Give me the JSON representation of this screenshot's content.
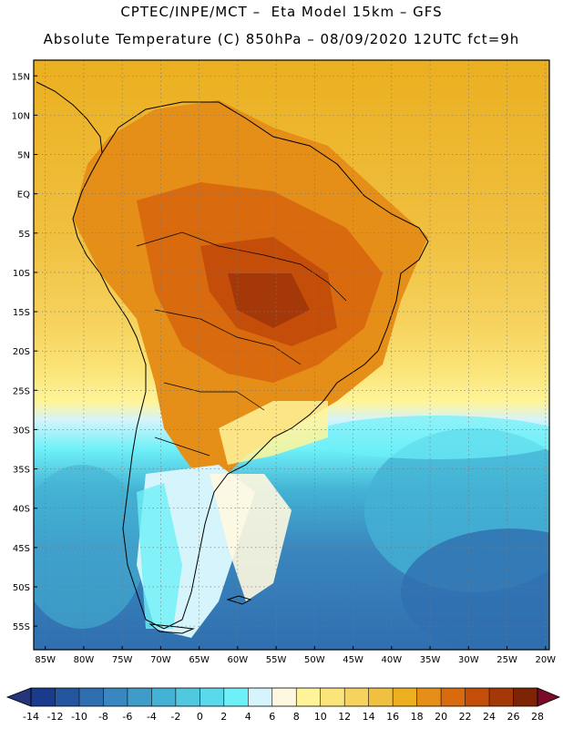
{
  "header": {
    "line1": "CPTEC/INPE/MCT –  Eta Model 15km – GFS",
    "line2": "Absolute Temperature (C) 850hPa – 08/09/2020 12UTC fct=9h"
  },
  "map": {
    "region": "South America",
    "lat_labels": [
      "15N",
      "10N",
      "5N",
      "EQ",
      "5S",
      "10S",
      "15S",
      "20S",
      "25S",
      "30S",
      "35S",
      "40S",
      "45S",
      "50S",
      "55S"
    ],
    "lat_values": [
      15,
      10,
      5,
      0,
      -5,
      -10,
      -15,
      -20,
      -25,
      -30,
      -35,
      -40,
      -45,
      -50,
      -55
    ],
    "lon_labels": [
      "85W",
      "80W",
      "75W",
      "70W",
      "65W",
      "60W",
      "55W",
      "50W",
      "45W",
      "40W",
      "35W",
      "30W",
      "25W",
      "20W"
    ],
    "lon_values": [
      -85,
      -80,
      -75,
      -70,
      -65,
      -60,
      -55,
      -50,
      -45,
      -40,
      -35,
      -30,
      -25,
      -20
    ],
    "lat_range": [
      -58,
      17
    ],
    "lon_range": [
      -86.5,
      -19.5
    ]
  },
  "colorbar": {
    "ticks": [
      "-14",
      "-12",
      "-10",
      "-8",
      "-6",
      "-4",
      "-2",
      "0",
      "2",
      "4",
      "6",
      "8",
      "10",
      "12",
      "14",
      "16",
      "18",
      "20",
      "22",
      "24",
      "26",
      "28"
    ],
    "colors": [
      "#1a3a8c",
      "#2456a0",
      "#2f6fb0",
      "#3a86be",
      "#3f9cc8",
      "#44b2d4",
      "#4fc8e0",
      "#5ad9ea",
      "#6ef0f8",
      "#d6f4fb",
      "#fff8e0",
      "#fff49a",
      "#fbe57a",
      "#f6d35e",
      "#f0c040",
      "#ebaf20",
      "#e58e18",
      "#d96a0e",
      "#c54d0a",
      "#a53808",
      "#7e2406"
    ],
    "left_arrow_color": "#24357a",
    "right_arrow_color": "#7a0a28"
  }
}
